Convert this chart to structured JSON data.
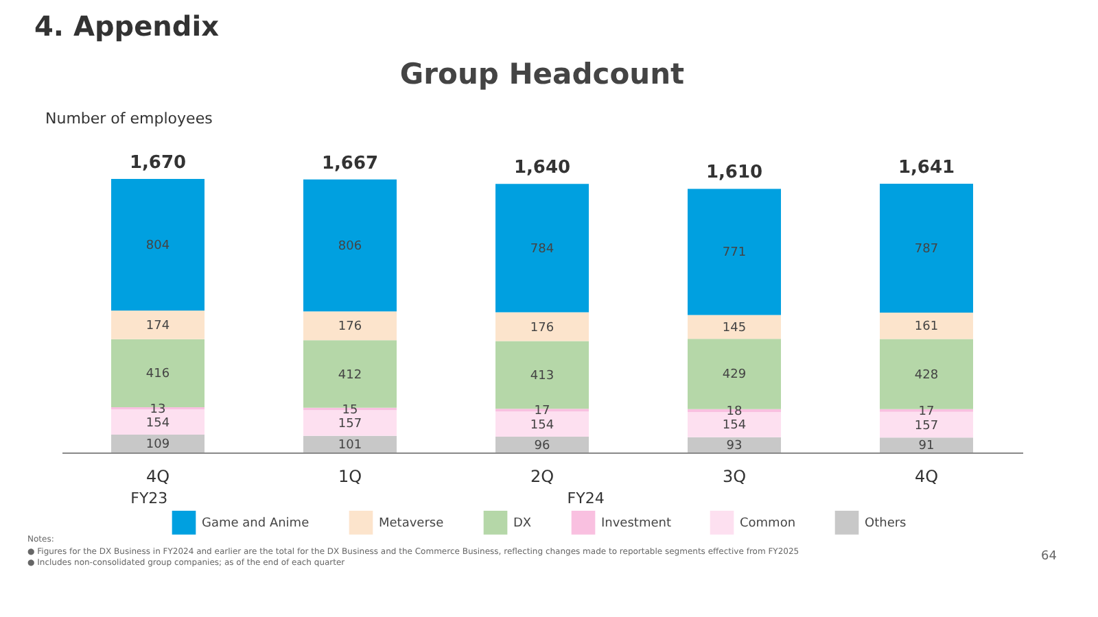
{
  "chart_data": {
    "type": "bar",
    "stacked": true,
    "title": "4. Appendix",
    "subtitle": "Group Headcount",
    "ylabel": "Number of employees",
    "categories": [
      "4Q",
      "1Q",
      "2Q",
      "3Q",
      "4Q"
    ],
    "series": [
      {
        "name": "Others",
        "color": "#c8c8c8",
        "values": [
          109,
          101,
          96,
          93,
          91
        ]
      },
      {
        "name": "Common",
        "color": "#fde0f0",
        "values": [
          154,
          157,
          154,
          154,
          157
        ]
      },
      {
        "name": "Investment",
        "color": "#f9c0e0",
        "values": [
          13,
          15,
          17,
          18,
          17
        ]
      },
      {
        "name": "DX",
        "color": "#b5d7a8",
        "values": [
          416,
          412,
          413,
          429,
          428
        ]
      },
      {
        "name": "Metaverse",
        "color": "#fce4cc",
        "values": [
          174,
          176,
          176,
          145,
          161
        ]
      },
      {
        "name": "Game and Anime",
        "color": "#00a0e0",
        "values": [
          804,
          806,
          784,
          771,
          787
        ]
      }
    ],
    "totals": [
      "1,670",
      "1,667",
      "1,640",
      "1,610",
      "1,641"
    ],
    "data_labels": true,
    "legend": "bottom",
    "grid": false,
    "annotations": [
      "FY23",
      "FY24",
      "Notes:",
      "●  Figures for the DX Business in FY2024 and earlier are the total for the DX Business and the Commerce Business, reflecting changes made to reportable segments effective from FY2025",
      "●  Includes non-consolidated group companies; as of the end of each quarter",
      "64"
    ]
  }
}
